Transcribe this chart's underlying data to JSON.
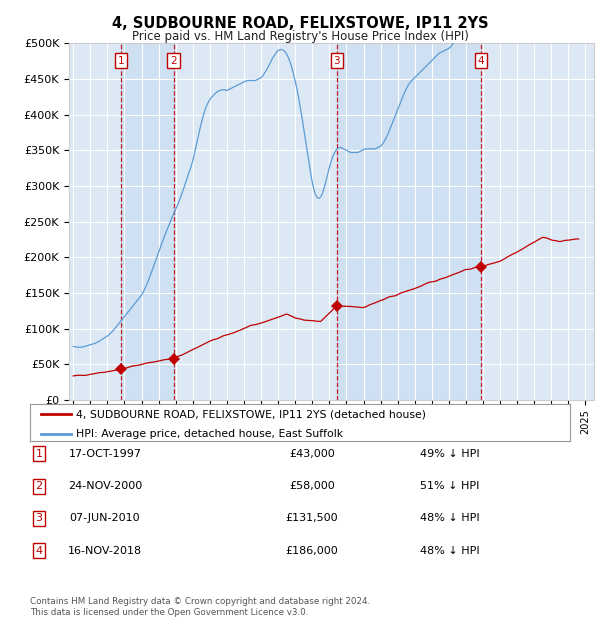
{
  "title": "4, SUDBOURNE ROAD, FELIXSTOWE, IP11 2YS",
  "subtitle": "Price paid vs. HM Land Registry's House Price Index (HPI)",
  "ytick_values": [
    0,
    50000,
    100000,
    150000,
    200000,
    250000,
    300000,
    350000,
    400000,
    450000,
    500000
  ],
  "ylabel_ticks": [
    "£0",
    "£50K",
    "£100K",
    "£150K",
    "£200K",
    "£250K",
    "£300K",
    "£350K",
    "£400K",
    "£450K",
    "£500K"
  ],
  "ylim": [
    0,
    500000
  ],
  "xlim_start": 1994.75,
  "xlim_end": 2025.5,
  "plot_bg_color": "#dce9f5",
  "hpi_color": "#5b9bd5",
  "property_color": "#c00000",
  "sales": [
    {
      "num": 1,
      "date": "17-OCT-1997",
      "price": 43000,
      "x": 1997.79
    },
    {
      "num": 2,
      "date": "24-NOV-2000",
      "price": 58000,
      "x": 2000.88
    },
    {
      "num": 3,
      "date": "07-JUN-2010",
      "price": 131500,
      "x": 2010.44
    },
    {
      "num": 4,
      "date": "16-NOV-2018",
      "price": 186000,
      "x": 2018.88
    }
  ],
  "legend_label_property": "4, SUDBOURNE ROAD, FELIXSTOWE, IP11 2YS (detached house)",
  "legend_label_hpi": "HPI: Average price, detached house, East Suffolk",
  "footer_text": "Contains HM Land Registry data © Crown copyright and database right 2024.\nThis data is licensed under the Open Government Licence v3.0.",
  "table_rows": [
    {
      "num": "1",
      "date": "17-OCT-1997",
      "price": "£43,000",
      "pct": "49% ↓ HPI"
    },
    {
      "num": "2",
      "date": "24-NOV-2000",
      "price": "£58,000",
      "pct": "51% ↓ HPI"
    },
    {
      "num": "3",
      "date": "07-JUN-2010",
      "price": "£131,500",
      "pct": "48% ↓ HPI"
    },
    {
      "num": "4",
      "date": "16-NOV-2018",
      "price": "£186,000",
      "pct": "48% ↓ HPI"
    }
  ]
}
